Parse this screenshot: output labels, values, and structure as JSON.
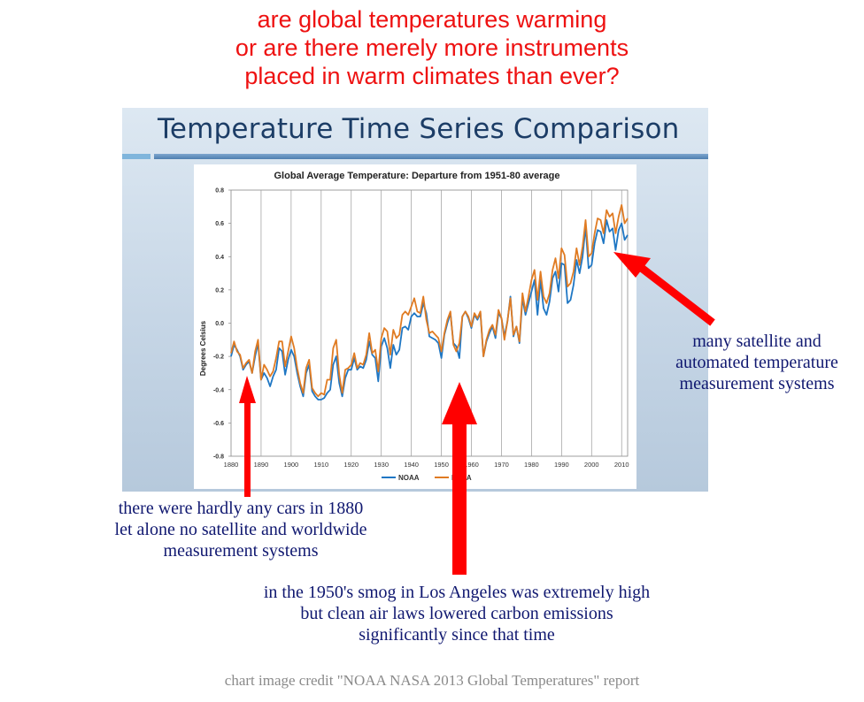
{
  "headline": {
    "lines": [
      "are global temperatures warming",
      "or are there merely more instruments",
      "placed in warm climates than ever?"
    ]
  },
  "slide": {
    "title": "Temperature Time Series Comparison"
  },
  "chart_data": {
    "type": "line",
    "title": "Global Average Temperature: Departure from 1951-80 average",
    "xlabel": "",
    "ylabel": "Degrees Celsius",
    "xlim": [
      1880,
      2012
    ],
    "ylim": [
      -0.8,
      0.8
    ],
    "x_ticks": [
      "1880",
      "1890",
      "1900",
      "1910",
      "1920",
      "1930",
      "1940",
      "1950",
      "1960",
      "1970",
      "1980",
      "1990",
      "2000",
      "2010"
    ],
    "y_ticks": [
      "0.8",
      "0.6",
      "0.4",
      "0.2",
      "0.0",
      "-0.2",
      "-0.4",
      "-0.6",
      "-0.8"
    ],
    "grid": "vertical",
    "legend": "bottom",
    "x": [
      1880,
      1881,
      1882,
      1883,
      1884,
      1885,
      1886,
      1887,
      1888,
      1889,
      1890,
      1891,
      1892,
      1893,
      1894,
      1895,
      1896,
      1897,
      1898,
      1899,
      1900,
      1901,
      1902,
      1903,
      1904,
      1905,
      1906,
      1907,
      1908,
      1909,
      1910,
      1911,
      1912,
      1913,
      1914,
      1915,
      1916,
      1917,
      1918,
      1919,
      1920,
      1921,
      1922,
      1923,
      1924,
      1925,
      1926,
      1927,
      1928,
      1929,
      1930,
      1931,
      1932,
      1933,
      1934,
      1935,
      1936,
      1937,
      1938,
      1939,
      1940,
      1941,
      1942,
      1943,
      1944,
      1945,
      1946,
      1947,
      1948,
      1949,
      1950,
      1951,
      1952,
      1953,
      1954,
      1955,
      1956,
      1957,
      1958,
      1959,
      1960,
      1961,
      1962,
      1963,
      1964,
      1965,
      1966,
      1967,
      1968,
      1969,
      1970,
      1971,
      1972,
      1973,
      1974,
      1975,
      1976,
      1977,
      1978,
      1979,
      1980,
      1981,
      1982,
      1983,
      1984,
      1985,
      1986,
      1987,
      1988,
      1989,
      1990,
      1991,
      1992,
      1993,
      1994,
      1995,
      1996,
      1997,
      1998,
      1999,
      2000,
      2001,
      2002,
      2003,
      2004,
      2005,
      2006,
      2007,
      2008,
      2009,
      2010,
      2011,
      2012
    ],
    "series": [
      {
        "name": "NOAA",
        "color": "#1f77c4",
        "values": [
          -0.2,
          -0.13,
          -0.16,
          -0.2,
          -0.28,
          -0.25,
          -0.23,
          -0.3,
          -0.2,
          -0.12,
          -0.34,
          -0.3,
          -0.33,
          -0.38,
          -0.32,
          -0.28,
          -0.15,
          -0.17,
          -0.31,
          -0.22,
          -0.16,
          -0.2,
          -0.3,
          -0.38,
          -0.44,
          -0.3,
          -0.25,
          -0.41,
          -0.44,
          -0.46,
          -0.46,
          -0.45,
          -0.42,
          -0.4,
          -0.25,
          -0.2,
          -0.36,
          -0.44,
          -0.33,
          -0.28,
          -0.28,
          -0.21,
          -0.28,
          -0.26,
          -0.27,
          -0.22,
          -0.11,
          -0.19,
          -0.21,
          -0.35,
          -0.14,
          -0.09,
          -0.15,
          -0.27,
          -0.13,
          -0.19,
          -0.16,
          -0.03,
          -0.02,
          -0.04,
          0.04,
          0.06,
          0.04,
          0.04,
          0.12,
          0.06,
          -0.08,
          -0.09,
          -0.1,
          -0.12,
          -0.21,
          -0.07,
          0.0,
          0.06,
          -0.12,
          -0.14,
          -0.21,
          0.04,
          0.07,
          0.03,
          -0.03,
          0.05,
          0.02,
          0.06,
          -0.2,
          -0.11,
          -0.06,
          -0.02,
          -0.09,
          0.06,
          0.03,
          -0.08,
          0.01,
          0.16,
          -0.08,
          -0.02,
          -0.12,
          0.15,
          0.05,
          0.12,
          0.19,
          0.26,
          0.05,
          0.26,
          0.09,
          0.05,
          0.13,
          0.27,
          0.31,
          0.19,
          0.36,
          0.35,
          0.12,
          0.14,
          0.23,
          0.38,
          0.3,
          0.4,
          0.58,
          0.33,
          0.35,
          0.48,
          0.56,
          0.55,
          0.48,
          0.62,
          0.55,
          0.57,
          0.44,
          0.56,
          0.6,
          0.5,
          0.53
        ]
      },
      {
        "name": "NASA",
        "color": "#e07b22",
        "values": [
          -0.18,
          -0.11,
          -0.17,
          -0.19,
          -0.27,
          -0.24,
          -0.22,
          -0.3,
          -0.17,
          -0.1,
          -0.34,
          -0.25,
          -0.28,
          -0.32,
          -0.29,
          -0.21,
          -0.11,
          -0.11,
          -0.26,
          -0.17,
          -0.08,
          -0.15,
          -0.27,
          -0.36,
          -0.42,
          -0.27,
          -0.22,
          -0.39,
          -0.42,
          -0.44,
          -0.42,
          -0.43,
          -0.34,
          -0.34,
          -0.15,
          -0.1,
          -0.31,
          -0.42,
          -0.28,
          -0.27,
          -0.25,
          -0.18,
          -0.27,
          -0.24,
          -0.25,
          -0.19,
          -0.06,
          -0.18,
          -0.16,
          -0.29,
          -0.09,
          -0.03,
          -0.05,
          -0.19,
          -0.04,
          -0.09,
          -0.07,
          0.05,
          0.07,
          0.05,
          0.1,
          0.15,
          0.07,
          0.06,
          0.16,
          0.02,
          -0.06,
          -0.05,
          -0.07,
          -0.09,
          -0.17,
          -0.06,
          0.02,
          0.07,
          -0.13,
          -0.17,
          -0.12,
          0.04,
          0.07,
          0.04,
          -0.02,
          0.06,
          0.03,
          0.07,
          -0.2,
          -0.1,
          -0.04,
          -0.01,
          -0.07,
          0.08,
          0.03,
          -0.1,
          0.01,
          0.15,
          -0.07,
          -0.02,
          -0.11,
          0.18,
          0.07,
          0.16,
          0.26,
          0.32,
          0.14,
          0.31,
          0.16,
          0.12,
          0.18,
          0.32,
          0.39,
          0.27,
          0.45,
          0.41,
          0.22,
          0.24,
          0.31,
          0.45,
          0.35,
          0.46,
          0.62,
          0.4,
          0.42,
          0.54,
          0.63,
          0.62,
          0.54,
          0.68,
          0.64,
          0.66,
          0.54,
          0.64,
          0.71,
          0.6,
          0.63
        ]
      }
    ]
  },
  "annotations": {
    "right": [
      "many satellite and",
      "automated temperature",
      "measurement systems"
    ],
    "left": [
      "there were hardly any cars in 1880",
      "let alone no satellite and worldwide",
      "measurement systems"
    ],
    "bottom": [
      "in the 1950's smog in Los Angeles was extremely high",
      "but clean air laws lowered carbon emissions",
      "significantly since that time"
    ]
  },
  "credit": "chart image credit \"NOAA NASA 2013 Global Temperatures\" report",
  "colors": {
    "headline": "#ee1111",
    "annotation": "#101870",
    "arrow": "#ff0000",
    "credit": "#8a8a8a"
  }
}
